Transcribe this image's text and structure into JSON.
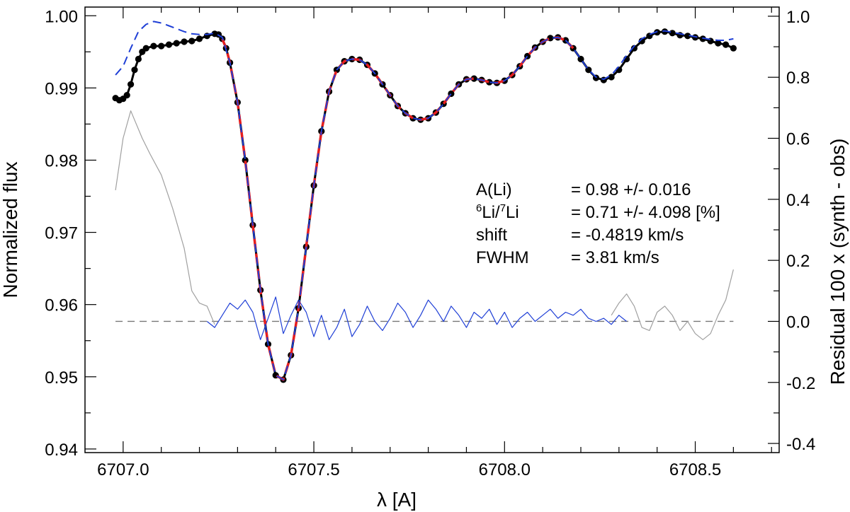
{
  "chart_data": {
    "type": "line",
    "xlabel": "λ [A]",
    "ylabel": "Normalized flux",
    "y2label": "Residual 100 x (synth - obs)",
    "xlim": [
      6706.9,
      6708.72
    ],
    "ylim": [
      0.9395,
      1.0012
    ],
    "y2lim": [
      -0.43,
      1.03
    ],
    "xticks": [
      6707.0,
      6707.5,
      6708.0,
      6708.5
    ],
    "xtick_labels": [
      "6707.0",
      "6707.5",
      "6708.0",
      "6708.5"
    ],
    "yticks": [
      0.94,
      0.95,
      0.96,
      0.97,
      0.98,
      0.99,
      1.0
    ],
    "ytick_labels": [
      "0.94",
      "0.95",
      "0.96",
      "0.97",
      "0.98",
      "0.99",
      "1.00"
    ],
    "y2ticks": [
      -0.4,
      -0.2,
      0.0,
      0.2,
      0.4,
      0.6,
      0.8,
      1.0
    ],
    "y2tick_labels": [
      "-0.4",
      "-0.2",
      "0.0",
      "0.2",
      "0.4",
      "0.6",
      "0.8",
      "1.0"
    ],
    "annotations": [
      {
        "label": "A(Li)",
        "value": "=  0.98 +/- 0.016"
      },
      {
        "label_iso6": "6",
        "label_li1": "Li/",
        "label_iso7": "7",
        "label_li2": "Li",
        "value": "=  0.71 +/- 4.098 [%]"
      },
      {
        "label": "shift",
        "value": "= -0.4819 km/s"
      },
      {
        "label": "FWHM",
        "value": "=  3.81 km/s"
      }
    ],
    "series": [
      {
        "name": "observed",
        "style": "black-dots",
        "color": "#000000",
        "x": [
          6706.98,
          6706.99,
          6707.0,
          6707.01,
          6707.02,
          6707.03,
          6707.04,
          6707.05,
          6707.06,
          6707.08,
          6707.1,
          6707.12,
          6707.14,
          6707.16,
          6707.18,
          6707.2,
          6707.22,
          6707.24,
          6707.25,
          6707.26,
          6707.27,
          6707.28,
          6707.3,
          6707.32,
          6707.34,
          6707.36,
          6707.38,
          6707.4,
          6707.42,
          6707.44,
          6707.46,
          6707.48,
          6707.5,
          6707.52,
          6707.54,
          6707.56,
          6707.58,
          6707.6,
          6707.62,
          6707.64,
          6707.66,
          6707.68,
          6707.7,
          6707.72,
          6707.74,
          6707.76,
          6707.78,
          6707.8,
          6707.82,
          6707.84,
          6707.86,
          6707.88,
          6707.9,
          6707.92,
          6707.94,
          6707.96,
          6707.98,
          6708.0,
          6708.02,
          6708.04,
          6708.06,
          6708.08,
          6708.1,
          6708.12,
          6708.14,
          6708.16,
          6708.18,
          6708.2,
          6708.22,
          6708.24,
          6708.26,
          6708.28,
          6708.3,
          6708.32,
          6708.34,
          6708.36,
          6708.38,
          6708.4,
          6708.42,
          6708.44,
          6708.46,
          6708.48,
          6708.5,
          6708.52,
          6708.54,
          6708.56,
          6708.58,
          6708.6
        ],
        "y": [
          0.9886,
          0.9883,
          0.9885,
          0.989,
          0.9905,
          0.9925,
          0.994,
          0.995,
          0.9955,
          0.9958,
          0.9958,
          0.996,
          0.9962,
          0.9964,
          0.9965,
          0.9968,
          0.9972,
          0.9975,
          0.9974,
          0.9968,
          0.9955,
          0.9935,
          0.988,
          0.98,
          0.971,
          0.962,
          0.9545,
          0.9502,
          0.9496,
          0.953,
          0.9595,
          0.968,
          0.9765,
          0.984,
          0.9895,
          0.9925,
          0.9937,
          0.994,
          0.9939,
          0.9932,
          0.992,
          0.9905,
          0.989,
          0.9875,
          0.9865,
          0.9858,
          0.9856,
          0.9858,
          0.9866,
          0.9878,
          0.9892,
          0.9905,
          0.9912,
          0.9913,
          0.9911,
          0.9908,
          0.9907,
          0.991,
          0.9918,
          0.993,
          0.9944,
          0.9956,
          0.9964,
          0.9969,
          0.997,
          0.9966,
          0.9955,
          0.994,
          0.9925,
          0.9914,
          0.9911,
          0.9915,
          0.9925,
          0.994,
          0.9955,
          0.9965,
          0.9972,
          0.9977,
          0.9978,
          0.9976,
          0.9973,
          0.9972,
          0.997,
          0.9968,
          0.9965,
          0.9962,
          0.996,
          0.9955
        ]
      },
      {
        "name": "synthetic-red",
        "style": "red-dashed",
        "color": "#e61e1e",
        "x": [
          6707.26,
          6707.27,
          6707.28,
          6707.3,
          6707.32,
          6707.34,
          6707.36,
          6707.38,
          6707.4,
          6707.42,
          6707.44,
          6707.46,
          6707.48,
          6707.5,
          6707.52,
          6707.54,
          6707.56,
          6707.58,
          6707.6,
          6707.62,
          6707.64,
          6707.66,
          6707.68,
          6707.7,
          6707.72,
          6707.74,
          6707.76,
          6707.78,
          6707.8,
          6707.82,
          6707.84,
          6707.86,
          6707.88,
          6707.9,
          6707.92,
          6707.94,
          6707.96,
          6707.98,
          6708.0,
          6708.02,
          6708.04,
          6708.06,
          6708.08,
          6708.1,
          6708.12,
          6708.14,
          6708.16,
          6708.18
        ],
        "y": [
          0.9968,
          0.9955,
          0.9935,
          0.988,
          0.98,
          0.971,
          0.962,
          0.9545,
          0.9502,
          0.9496,
          0.953,
          0.9595,
          0.968,
          0.9765,
          0.984,
          0.9895,
          0.9925,
          0.9937,
          0.994,
          0.9939,
          0.9932,
          0.992,
          0.9905,
          0.989,
          0.9875,
          0.9865,
          0.9858,
          0.9856,
          0.9858,
          0.9866,
          0.9878,
          0.9892,
          0.9905,
          0.9912,
          0.9913,
          0.9911,
          0.9908,
          0.9907,
          0.991,
          0.9918,
          0.993,
          0.9944,
          0.9956,
          0.9964,
          0.9969,
          0.997,
          0.9966,
          0.9955
        ]
      },
      {
        "name": "synthetic-blue",
        "style": "blue-dashed",
        "color": "#1f3fd6",
        "x": [
          6706.98,
          6707.0,
          6707.02,
          6707.04,
          6707.06,
          6707.08,
          6707.1,
          6707.12,
          6707.14,
          6707.16,
          6707.18,
          6707.2,
          6707.22,
          6707.24,
          6707.26,
          6707.28,
          6707.3,
          6707.32,
          6707.34,
          6707.36,
          6707.38,
          6707.4,
          6707.42,
          6707.44,
          6707.46,
          6707.48,
          6707.5,
          6707.52,
          6707.54,
          6707.56,
          6707.58,
          6707.6,
          6707.62,
          6707.64,
          6707.66,
          6707.68,
          6707.7,
          6707.72,
          6707.74,
          6707.76,
          6707.78,
          6707.8,
          6707.82,
          6707.84,
          6707.86,
          6707.88,
          6707.9,
          6707.92,
          6707.94,
          6707.96,
          6707.98,
          6708.0,
          6708.02,
          6708.04,
          6708.06,
          6708.08,
          6708.1,
          6708.12,
          6708.14,
          6708.16,
          6708.18,
          6708.2,
          6708.22,
          6708.24,
          6708.26,
          6708.28,
          6708.3,
          6708.32,
          6708.34,
          6708.36,
          6708.38,
          6708.4,
          6708.42,
          6708.44,
          6708.46,
          6708.48,
          6708.5,
          6708.52,
          6708.54,
          6708.56,
          6708.58,
          6708.6
        ],
        "y": [
          0.9918,
          0.993,
          0.9955,
          0.9978,
          0.9988,
          0.9992,
          0.999,
          0.9986,
          0.9982,
          0.9978,
          0.9975,
          0.9974,
          0.9974,
          0.9976,
          0.997,
          0.9935,
          0.988,
          0.98,
          0.971,
          0.962,
          0.9545,
          0.9502,
          0.9496,
          0.953,
          0.9595,
          0.968,
          0.9765,
          0.984,
          0.9895,
          0.9925,
          0.9937,
          0.994,
          0.9939,
          0.9932,
          0.992,
          0.9905,
          0.989,
          0.9875,
          0.9865,
          0.9858,
          0.9856,
          0.9858,
          0.9866,
          0.9878,
          0.9892,
          0.9905,
          0.9912,
          0.9913,
          0.9911,
          0.9908,
          0.9907,
          0.991,
          0.9918,
          0.993,
          0.9944,
          0.9956,
          0.9964,
          0.9969,
          0.997,
          0.9966,
          0.9955,
          0.994,
          0.9925,
          0.9915,
          0.9912,
          0.9918,
          0.993,
          0.9945,
          0.9958,
          0.9968,
          0.9974,
          0.9978,
          0.9979,
          0.9977,
          0.9975,
          0.9973,
          0.9971,
          0.9969,
          0.9967,
          0.9966,
          0.9966,
          0.9968
        ]
      },
      {
        "name": "residual-gray-left",
        "style": "gray-line",
        "axis": "y2",
        "color": "#a0a0a0",
        "x": [
          6706.98,
          6707.0,
          6707.02,
          6707.03,
          6707.05,
          6707.07,
          6707.1,
          6707.13,
          6707.16,
          6707.18,
          6707.2,
          6707.22,
          6707.24
        ],
        "y": [
          0.43,
          0.6,
          0.69,
          0.66,
          0.6,
          0.55,
          0.48,
          0.37,
          0.24,
          0.1,
          0.06,
          0.05,
          -0.01
        ]
      },
      {
        "name": "residual-blue",
        "style": "blue-line",
        "axis": "y2",
        "color": "#1f3fd6",
        "x": [
          6707.22,
          6707.24,
          6707.26,
          6707.28,
          6707.3,
          6707.32,
          6707.34,
          6707.36,
          6707.38,
          6707.4,
          6707.42,
          6707.44,
          6707.46,
          6707.48,
          6707.5,
          6707.52,
          6707.54,
          6707.56,
          6707.58,
          6707.6,
          6707.62,
          6707.64,
          6707.66,
          6707.68,
          6707.7,
          6707.72,
          6707.74,
          6707.76,
          6707.78,
          6707.8,
          6707.82,
          6707.84,
          6707.86,
          6707.88,
          6707.9,
          6707.92,
          6707.94,
          6707.96,
          6707.98,
          6708.0,
          6708.02,
          6708.04,
          6708.06,
          6708.08,
          6708.1,
          6708.12,
          6708.14,
          6708.16,
          6708.18,
          6708.2,
          6708.22,
          6708.24,
          6708.26,
          6708.28,
          6708.3,
          6708.32
        ],
        "y": [
          0.0,
          -0.02,
          0.02,
          0.06,
          0.04,
          0.07,
          0.03,
          -0.06,
          0.01,
          0.08,
          -0.04,
          0.02,
          0.07,
          0.03,
          -0.05,
          0.02,
          -0.06,
          -0.02,
          0.04,
          -0.05,
          -0.01,
          0.05,
          0.0,
          -0.03,
          0.01,
          0.06,
          0.03,
          -0.02,
          0.02,
          0.07,
          0.04,
          0.0,
          0.05,
          0.02,
          -0.02,
          0.03,
          0.01,
          0.04,
          -0.01,
          0.03,
          -0.02,
          0.01,
          0.03,
          0.0,
          0.02,
          0.04,
          0.01,
          0.03,
          0.02,
          0.04,
          0.01,
          0.0,
          0.01,
          -0.01,
          0.02,
          0.0
        ]
      },
      {
        "name": "residual-gray-right",
        "style": "gray-line",
        "axis": "y2",
        "color": "#a0a0a0",
        "x": [
          6708.28,
          6708.3,
          6708.32,
          6708.34,
          6708.36,
          6708.38,
          6708.4,
          6708.42,
          6708.44,
          6708.46,
          6708.48,
          6708.5,
          6708.52,
          6708.54,
          6708.56,
          6708.58,
          6708.6
        ],
        "y": [
          0.02,
          0.06,
          0.09,
          0.05,
          -0.02,
          -0.03,
          0.03,
          0.05,
          0.02,
          -0.03,
          0.0,
          -0.04,
          -0.06,
          -0.04,
          0.02,
          0.07,
          0.17
        ]
      }
    ],
    "reference_line": {
      "y2": 0.0,
      "style": "dashed",
      "color": "#777777"
    }
  }
}
